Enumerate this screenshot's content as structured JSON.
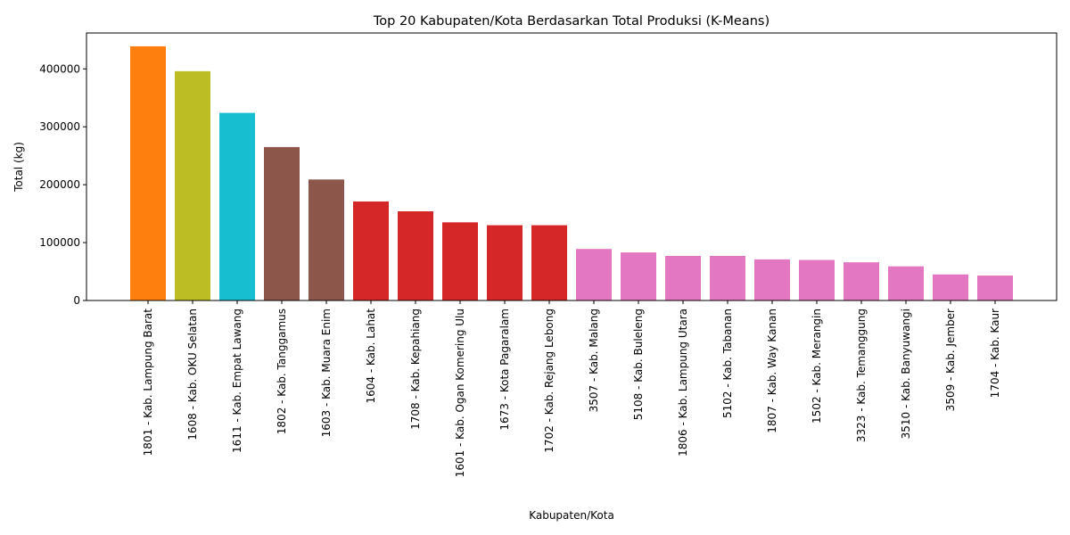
{
  "chart_data": {
    "type": "bar",
    "title": "Top 20 Kabupaten/Kota Berdasarkan Total Produksi (K-Means)",
    "xlabel": "Kabupaten/Kota",
    "ylabel": "Total (kg)",
    "ylim": [
      0,
      462000
    ],
    "yticks": [
      0,
      100000,
      200000,
      300000,
      400000
    ],
    "ytick_labels": [
      "0",
      "100000",
      "200000",
      "300000",
      "400000"
    ],
    "grid": false,
    "categories": [
      "1801 - Kab. Lampung Barat",
      "1608 - Kab. OKU Selatan",
      "1611 - Kab. Empat Lawang",
      "1802 - Kab. Tanggamus",
      "1603 - Kab. Muara Enim",
      "1604 - Kab. Lahat",
      "1708 - Kab. Kepahiang",
      "1601 - Kab. Ogan Komering Ulu",
      "1673 - Kota Pagaralam",
      "1702 - Kab. Rejang Lebong",
      "3507 - Kab. Malang",
      "5108 - Kab. Buleleng",
      "1806 - Kab. Lampung Utara",
      "5102 - Kab. Tabanan",
      "1807 - Kab. Way Kanan",
      "1502 - Kab. Merangin",
      "3323 - Kab. Temanggung",
      "3510 - Kab. Banyuwangi",
      "3509 - Kab. Jember",
      "1704 - Kab. Kaur"
    ],
    "values": [
      439000,
      396000,
      324000,
      265000,
      209000,
      171000,
      154000,
      135000,
      130000,
      130000,
      89000,
      83000,
      77000,
      77000,
      71000,
      70000,
      66000,
      59000,
      45000,
      43000
    ],
    "colors": [
      "#ff7f0e",
      "#bcbd22",
      "#17becf",
      "#8c564b",
      "#8c564b",
      "#d62728",
      "#d62728",
      "#d62728",
      "#d62728",
      "#d62728",
      "#e377c2",
      "#e377c2",
      "#e377c2",
      "#e377c2",
      "#e377c2",
      "#e377c2",
      "#e377c2",
      "#e377c2",
      "#e377c2",
      "#e377c2"
    ]
  }
}
